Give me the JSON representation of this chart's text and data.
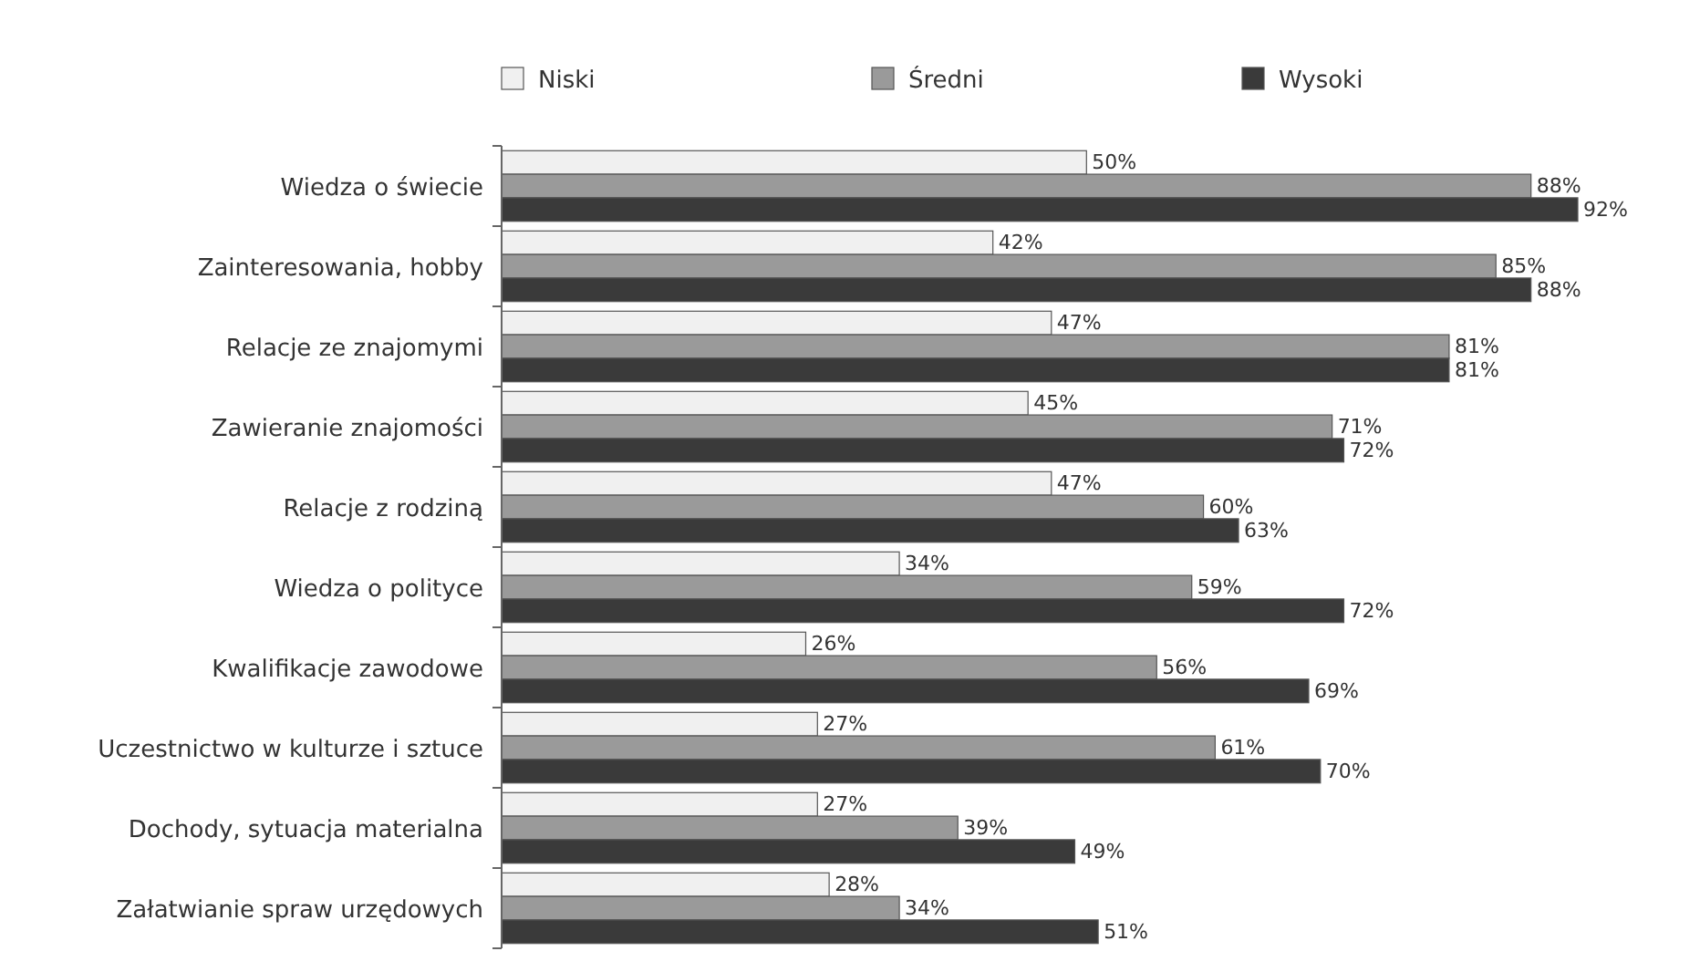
{
  "chart_data": {
    "type": "bar",
    "orientation": "horizontal",
    "legend": "top",
    "data_labels": true,
    "categories": [
      "Wiedza o świecie",
      "Zainteresowania, hobby",
      "Relacje ze znajomymi",
      "Zawieranie znajomości",
      "Relacje z rodziną",
      "Wiedza o polityce",
      "Kwalifikacje zawodowe",
      "Uczestnictwo w kulturze i sztuce",
      "Dochody, sytuacja materialna",
      "Załatwianie spraw urzędowych"
    ],
    "series": [
      {
        "name": "Niski",
        "color": "#f0f0f0",
        "values": [
          50,
          42,
          47,
          45,
          47,
          34,
          26,
          27,
          27,
          28
        ],
        "value_labels": [
          "50%",
          "42%",
          "47%",
          "45%",
          "47%",
          "34%",
          "26%",
          "27%",
          "27%",
          "28%"
        ]
      },
      {
        "name": "Średni",
        "color": "#9a9a9a",
        "values": [
          88,
          85,
          81,
          71,
          60,
          59,
          56,
          61,
          39,
          34
        ],
        "value_labels": [
          "88%",
          "85%",
          "81%",
          "71%",
          "60%",
          "59%",
          "56%",
          "61%",
          "39%",
          "34%"
        ]
      },
      {
        "name": "Wysoki",
        "color": "#3a3a3a",
        "values": [
          92,
          88,
          81,
          72,
          63,
          72,
          69,
          70,
          49,
          51
        ],
        "value_labels": [
          "92%",
          "88%",
          "81%",
          "72%",
          "63%",
          "72%",
          "69%",
          "70%",
          "49%",
          "51%"
        ]
      }
    ]
  }
}
